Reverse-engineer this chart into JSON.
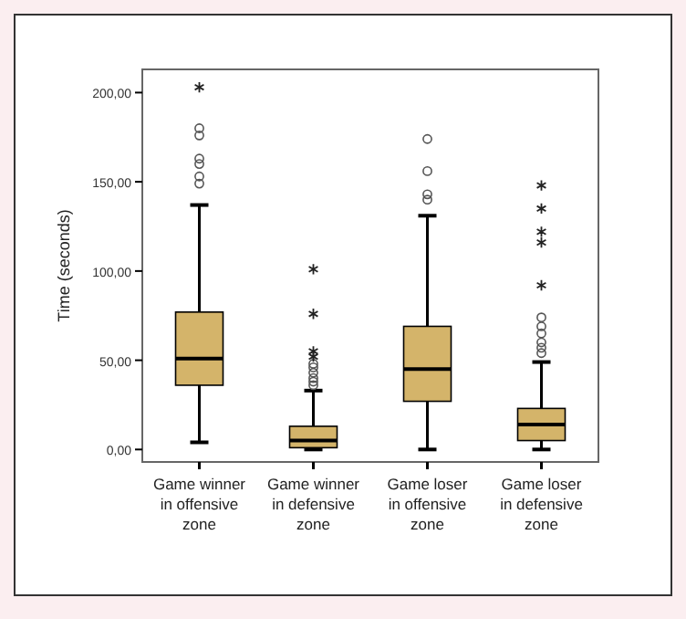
{
  "chart_data": {
    "type": "box",
    "ylabel": "Time (seconds)",
    "categories": [
      "Game winner in offensive zone",
      "Game winner in defensive zone",
      "Game loser in offensive zone",
      "Game loser in defensive zone"
    ],
    "color": "#d4b46a",
    "ylim": [
      -7,
      213
    ],
    "yticks": [
      {
        "value": 0,
        "label": "0,00"
      },
      {
        "value": 50,
        "label": "50,00"
      },
      {
        "value": 100,
        "label": "100,00"
      },
      {
        "value": 150,
        "label": "150,00"
      },
      {
        "value": 200,
        "label": "200,00"
      }
    ],
    "grid": false,
    "boxes": [
      {
        "low": 4,
        "q1": 36,
        "median": 51,
        "q3": 77,
        "high": 137,
        "outliers": [
          149,
          153,
          160,
          163,
          176,
          180,
          203
        ]
      },
      {
        "low": 0,
        "q1": 1,
        "median": 5,
        "q3": 13,
        "high": 33,
        "outliers": [
          36,
          38,
          40,
          43,
          46,
          48,
          52,
          55,
          76,
          101
        ]
      },
      {
        "low": 0,
        "q1": 27,
        "median": 45,
        "q3": 69,
        "high": 131,
        "outliers": [
          140,
          143,
          156,
          174
        ]
      },
      {
        "low": 0,
        "q1": 5,
        "median": 14,
        "q3": 23,
        "high": 49,
        "outliers": [
          54,
          57,
          60,
          65,
          69,
          74,
          92,
          116,
          122,
          135,
          148
        ]
      }
    ]
  }
}
